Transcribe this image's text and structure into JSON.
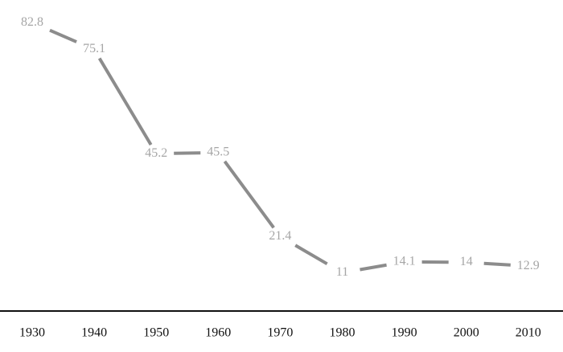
{
  "chart_data": {
    "type": "line",
    "categories": [
      "1930",
      "1940",
      "1950",
      "1960",
      "1970",
      "1980",
      "1990",
      "2000",
      "2010"
    ],
    "values": [
      82.8,
      75.1,
      45.2,
      45.5,
      21.4,
      11,
      14.1,
      14,
      12.9
    ],
    "color": "#8c8c8c",
    "label_color": "#a6a6a6",
    "ylim": [
      0,
      90
    ]
  }
}
